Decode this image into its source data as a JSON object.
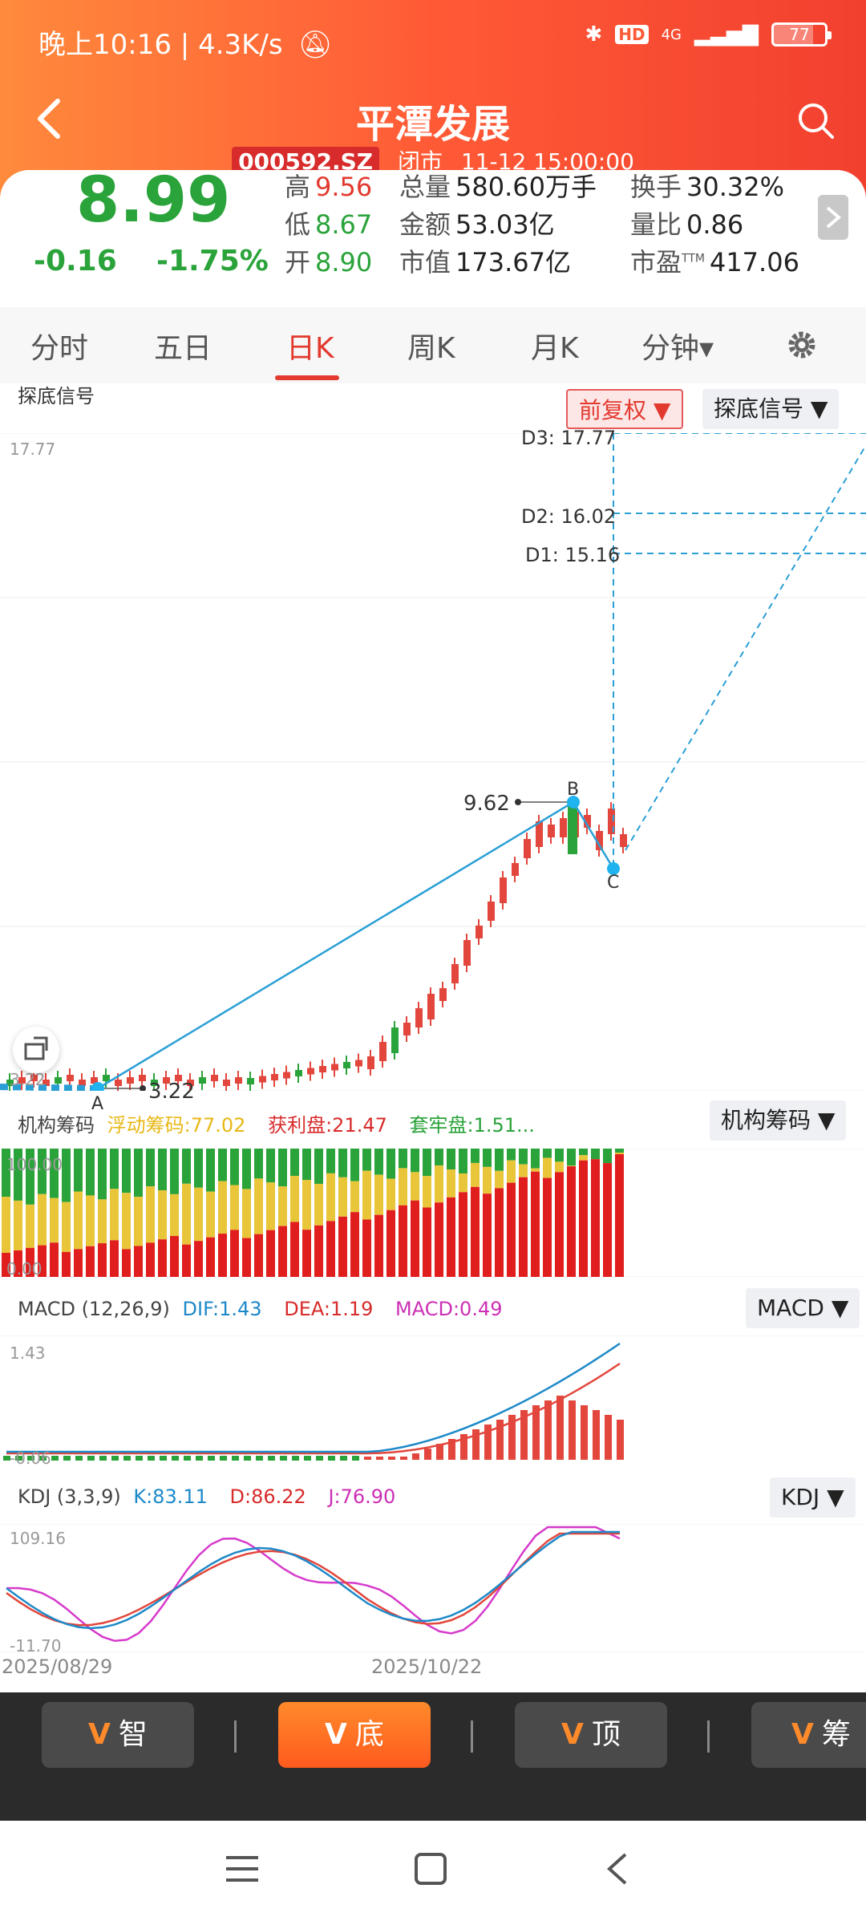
{
  "status": {
    "time": "晚上10:16",
    "speed": "4.3K/s",
    "battery": "77",
    "net": "4G"
  },
  "header": {
    "title": "平潭发展",
    "code": "000592.SZ",
    "state": "闭市",
    "datetime": "11-12 15:00:00"
  },
  "quote": {
    "price": "8.99",
    "change": "-0.16",
    "change_pct": "-1.75%",
    "high_label": "高",
    "high": "9.56",
    "low_label": "低",
    "low": "8.67",
    "open_label": "开",
    "open": "8.90",
    "vol_label": "总量",
    "vol": "580.60万手",
    "amount_label": "金额",
    "amount": "53.03亿",
    "mcap_label": "市值",
    "mcap": "173.67亿",
    "turnover_label": "换手",
    "turnover": "30.32%",
    "ratio_label": "量比",
    "ratio": "0.86",
    "pe_label": "市盈",
    "pe_sup": "TTM",
    "pe": "417.06"
  },
  "tabs": [
    {
      "label": "分时"
    },
    {
      "label": "五日"
    },
    {
      "label": "日K"
    },
    {
      "label": "周K"
    },
    {
      "label": "月K"
    },
    {
      "label": "分钟▾"
    }
  ],
  "kline": {
    "indicator_name": "探底信号",
    "adjust_select": "前复权 ▼",
    "signal_select": "探底信号 ▼",
    "top_axis": "17.77",
    "bottom_axis": "3.22",
    "D3": "D3: 17.77",
    "D2": "D2: 16.02",
    "D1": "D1: 15.16",
    "peak_value": "9.62",
    "low_value": "3.22",
    "point_a": "A",
    "point_b": "B",
    "point_c": "C"
  },
  "chips": {
    "name": "机构筹码",
    "float": "浮动筹码:77.02",
    "profit": "获利盘:21.47",
    "trapped": "套牢盘:1.51...",
    "select": "机构筹码 ▼",
    "axis_top": "100.00",
    "axis_bottom": "0.00"
  },
  "macd": {
    "name": "MACD (12,26,9)",
    "dif": "DIF:1.43",
    "dea": "DEA:1.19",
    "macd": "MACD:0.49",
    "select": "MACD ▼",
    "axis_top": "1.43",
    "axis_bottom": "-0.06"
  },
  "kdj": {
    "name": "KDJ (3,3,9)",
    "k": "K:83.11",
    "d": "D:86.22",
    "j": "J:76.90",
    "select": "KDJ ▼",
    "axis_top": "109.16",
    "axis_bottom": "-11.70"
  },
  "dates": {
    "start": "2025/08/29",
    "mid": "2025/10/22"
  },
  "bottom_buttons": [
    {
      "label": "智"
    },
    {
      "label": "底"
    },
    {
      "label": "顶"
    },
    {
      "label": "筹"
    }
  ],
  "colors": {
    "up": "#e23a2f",
    "down": "#2aa33a",
    "accent": "#ff5a36"
  }
}
